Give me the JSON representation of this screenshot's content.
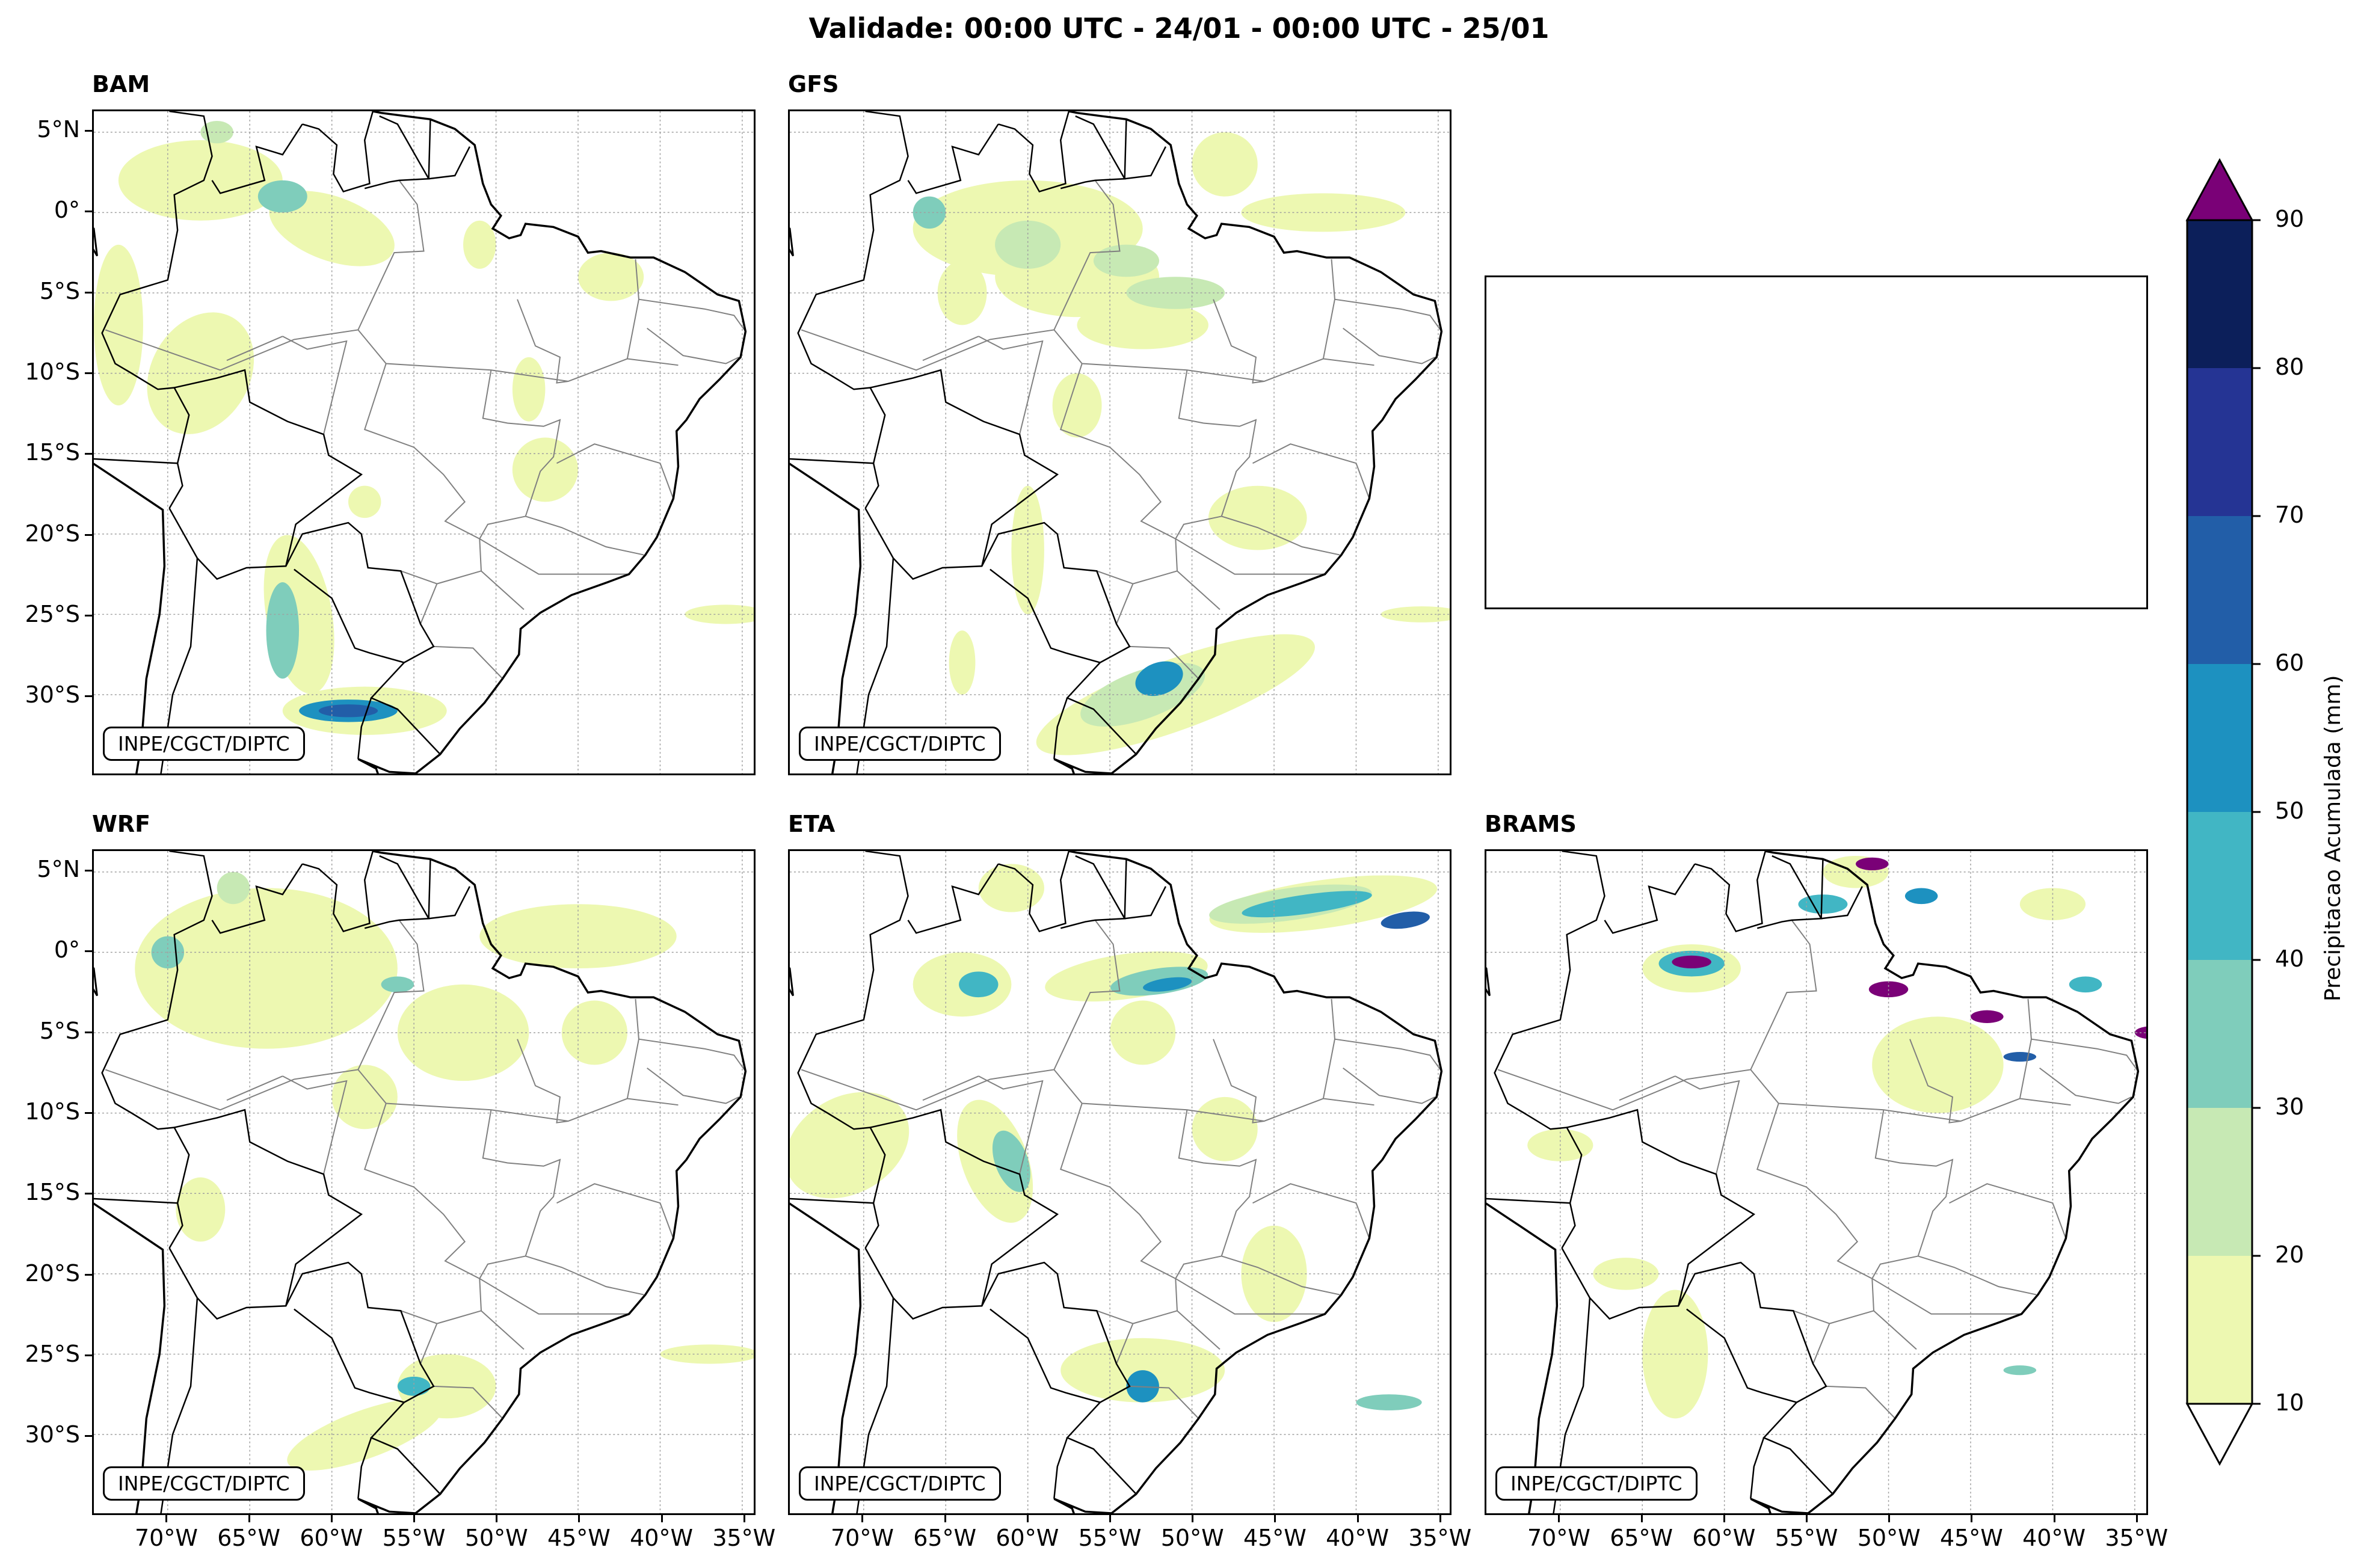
{
  "title": "Validade: 00:00 UTC - 24/01 - 00:00 UTC - 25/01",
  "credit": "INPE/CGCT/DIPTC",
  "panels": [
    {
      "name": "BAM"
    },
    {
      "name": "GFS"
    },
    {
      "name": ""
    },
    {
      "name": "WRF"
    },
    {
      "name": "ETA"
    },
    {
      "name": "BRAMS"
    }
  ],
  "lat_ticks": [
    "5°N",
    "0°",
    "5°S",
    "10°S",
    "15°S",
    "20°S",
    "25°S",
    "30°S"
  ],
  "lon_ticks": [
    "70°W",
    "65°W",
    "60°W",
    "55°W",
    "50°W",
    "45°W",
    "40°W",
    "35°W"
  ],
  "colorbar": {
    "title": "Precipitacao Acumulada (mm)",
    "ticks": [
      "10",
      "20",
      "30",
      "40",
      "50",
      "60",
      "70",
      "80",
      "90"
    ],
    "colors": [
      "#edf8b1",
      "#c7e9b4",
      "#7fcdbb",
      "#41b6c4",
      "#1d91c0",
      "#225ea8",
      "#253494",
      "#0c1f5a"
    ],
    "over_color": "#7a0177",
    "under_color": "#ffffff"
  },
  "colors": {
    "coast": "#000000",
    "border": "#000000",
    "state": "#808080",
    "grid": "#a0a0a0"
  }
}
